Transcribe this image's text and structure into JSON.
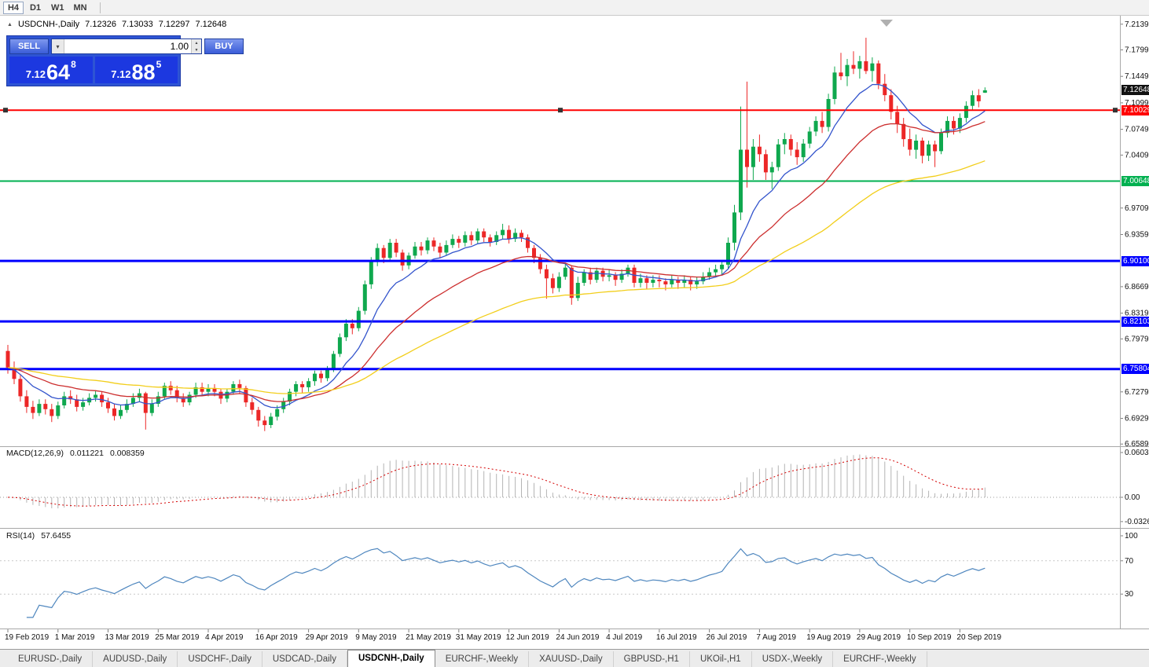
{
  "toolbar": {
    "timeframes": [
      "H4",
      "D1",
      "W1",
      "MN"
    ],
    "active": "H4"
  },
  "chart": {
    "title": {
      "symbol": "USDCNH-,Daily",
      "open": "7.12326",
      "high": "7.13033",
      "low": "7.12297",
      "close": "7.12648"
    }
  },
  "trade_panel": {
    "sell_label": "SELL",
    "buy_label": "BUY",
    "volume": "1.00",
    "sell_price": {
      "prefix": "7.12",
      "big": "64",
      "sup": "8"
    },
    "buy_price": {
      "prefix": "7.12",
      "big": "88",
      "sup": "5"
    }
  },
  "tabs": {
    "items": [
      {
        "label": "EURUSD-,Daily",
        "active": false
      },
      {
        "label": "AUDUSD-,Daily",
        "active": false
      },
      {
        "label": "USDCHF-,Daily",
        "active": false
      },
      {
        "label": "USDCAD-,Daily",
        "active": false
      },
      {
        "label": "USDCNH-,Daily",
        "active": true
      },
      {
        "label": "EURCHF-,Weekly",
        "active": false
      },
      {
        "label": "XAUUSD-,Daily",
        "active": false
      },
      {
        "label": "GBPUSD-,H1",
        "active": false
      },
      {
        "label": "UKOil-,H1",
        "active": false
      },
      {
        "label": "USDX-,Weekly",
        "active": false
      },
      {
        "label": "EURCHF-,Weekly",
        "active": false
      }
    ]
  },
  "chart_data": {
    "type": "candlestick",
    "symbol": "USDCNH-",
    "timeframe": "Daily",
    "title": "USDCNH-,Daily 7.12326 7.13033 7.12297 7.12648",
    "grid": false,
    "price_range": {
      "top": 7.223,
      "bottom": 6.656
    },
    "colors": {
      "up": "#0FA84E",
      "down": "#EC2727",
      "ma_fast": "#3354CC",
      "ma_mid": "#CC2E2E",
      "ma_slow": "#F2CE1B",
      "macd_hist": "#B4B4B4",
      "macd_signal": "#D40000",
      "rsi": "#4E86BE",
      "level_red": "#FF0000",
      "level_green": "#00B050",
      "level_blue": "#0000FF",
      "last_price_bg": "#111111"
    },
    "moving_averages": [
      {
        "period": 10,
        "color": "#3354CC"
      },
      {
        "period": 25,
        "color": "#CC2E2E"
      },
      {
        "period": 60,
        "color": "#F2CE1B"
      }
    ],
    "levels": [
      {
        "price": 7.10029,
        "label": "7.10029",
        "color": "#FF0000",
        "width": 2,
        "selected": true
      },
      {
        "price": 7.00648,
        "label": "7.00648",
        "color": "#00B050",
        "width": 2,
        "selected": false
      },
      {
        "price": 6.901,
        "label": "6.90100",
        "color": "#0000FF",
        "width": 3,
        "selected": false
      },
      {
        "price": 6.82103,
        "label": "6.82103",
        "color": "#0000FF",
        "width": 3,
        "selected": false
      },
      {
        "price": 6.75804,
        "label": "6.75804",
        "color": "#0000FF",
        "width": 3,
        "selected": false
      }
    ],
    "last_price": {
      "label": "7.12648",
      "value": 7.12648
    },
    "price_axis_labels": [
      "7.21390",
      "7.17990",
      "7.14490",
      "7.10990",
      "7.07490",
      "7.04090",
      "6.97090",
      "6.93590",
      "6.86690",
      "6.83190",
      "6.79790",
      "6.72790",
      "6.69290",
      "6.65890"
    ],
    "x_axis_dates": [
      {
        "label": "19 Feb 2019",
        "index": 0
      },
      {
        "label": "1 Mar 2019",
        "index": 8
      },
      {
        "label": "13 Mar 2019",
        "index": 16
      },
      {
        "label": "25 Mar 2019",
        "index": 24
      },
      {
        "label": "4 Apr 2019",
        "index": 32
      },
      {
        "label": "16 Apr 2019",
        "index": 40
      },
      {
        "label": "29 Apr 2019",
        "index": 48
      },
      {
        "label": "9 May 2019",
        "index": 56
      },
      {
        "label": "21 May 2019",
        "index": 64
      },
      {
        "label": "31 May 2019",
        "index": 72
      },
      {
        "label": "12 Jun 2019",
        "index": 80
      },
      {
        "label": "24 Jun 2019",
        "index": 88
      },
      {
        "label": "4 Jul 2019",
        "index": 96
      },
      {
        "label": "16 Jul 2019",
        "index": 104
      },
      {
        "label": "26 Jul 2019",
        "index": 112
      },
      {
        "label": "7 Aug 2019",
        "index": 120
      },
      {
        "label": "19 Aug 2019",
        "index": 128
      },
      {
        "label": "29 Aug 2019",
        "index": 136
      },
      {
        "label": "10 Sep 2019",
        "index": 144
      },
      {
        "label": "20 Sep 2019",
        "index": 152
      }
    ],
    "indicators": {
      "macd": {
        "label": "MACD(12,26,9)",
        "value_main": "0.011221",
        "value_signal": "0.008359",
        "axis_labels": [
          "0.060317",
          "0.00",
          "-0.032648"
        ]
      },
      "rsi": {
        "label": "RSI(14)",
        "value": "57.6455",
        "axis_labels": [
          "100",
          "70",
          "30"
        ]
      }
    },
    "ohlc": [
      [
        6.782,
        6.79,
        6.752,
        6.76
      ],
      [
        6.76,
        6.768,
        6.738,
        6.745
      ],
      [
        6.745,
        6.75,
        6.715,
        6.722
      ],
      [
        6.722,
        6.73,
        6.7,
        6.708
      ],
      [
        6.708,
        6.716,
        6.692,
        6.7
      ],
      [
        6.7,
        6.718,
        6.696,
        6.712
      ],
      [
        6.712,
        6.718,
        6.698,
        6.705
      ],
      [
        6.705,
        6.712,
        6.688,
        6.696
      ],
      [
        6.696,
        6.715,
        6.692,
        6.71
      ],
      [
        6.71,
        6.728,
        6.706,
        6.722
      ],
      [
        6.722,
        6.73,
        6.712,
        6.718
      ],
      [
        6.718,
        6.724,
        6.702,
        6.708
      ],
      [
        6.708,
        6.72,
        6.703,
        6.714
      ],
      [
        6.714,
        6.726,
        6.71,
        6.72
      ],
      [
        6.72,
        6.73,
        6.715,
        6.724
      ],
      [
        6.724,
        6.728,
        6.708,
        6.714
      ],
      [
        6.714,
        6.72,
        6.7,
        6.706
      ],
      [
        6.706,
        6.712,
        6.69,
        6.696
      ],
      [
        6.696,
        6.71,
        6.692,
        6.704
      ],
      [
        6.704,
        6.718,
        6.7,
        6.712
      ],
      [
        6.712,
        6.726,
        6.708,
        6.72
      ],
      [
        6.72,
        6.732,
        6.714,
        6.726
      ],
      [
        6.726,
        6.728,
        6.678,
        6.7
      ],
      [
        6.7,
        6.718,
        6.696,
        6.712
      ],
      [
        6.712,
        6.728,
        6.708,
        6.722
      ],
      [
        6.722,
        6.74,
        6.718,
        6.736
      ],
      [
        6.736,
        6.742,
        6.724,
        6.73
      ],
      [
        6.73,
        6.736,
        6.714,
        6.72
      ],
      [
        6.72,
        6.726,
        6.708,
        6.714
      ],
      [
        6.714,
        6.728,
        6.71,
        6.724
      ],
      [
        6.724,
        6.74,
        6.72,
        6.734
      ],
      [
        6.734,
        6.74,
        6.722,
        6.728
      ],
      [
        6.728,
        6.738,
        6.722,
        6.733
      ],
      [
        6.733,
        6.738,
        6.722,
        6.728
      ],
      [
        6.728,
        6.732,
        6.712,
        6.719
      ],
      [
        6.719,
        6.732,
        6.714,
        6.728
      ],
      [
        6.728,
        6.742,
        6.724,
        6.738
      ],
      [
        6.738,
        6.744,
        6.726,
        6.733
      ],
      [
        6.733,
        6.736,
        6.708,
        6.714
      ],
      [
        6.714,
        6.72,
        6.698,
        6.704
      ],
      [
        6.704,
        6.708,
        6.682,
        6.69
      ],
      [
        6.69,
        6.696,
        6.676,
        6.684
      ],
      [
        6.684,
        6.7,
        6.68,
        6.695
      ],
      [
        6.695,
        6.71,
        6.69,
        6.705
      ],
      [
        6.705,
        6.72,
        6.7,
        6.715
      ],
      [
        6.715,
        6.732,
        6.71,
        6.728
      ],
      [
        6.728,
        6.742,
        6.722,
        6.738
      ],
      [
        6.738,
        6.742,
        6.726,
        6.734
      ],
      [
        6.734,
        6.746,
        6.728,
        6.742
      ],
      [
        6.742,
        6.756,
        6.736,
        6.752
      ],
      [
        6.752,
        6.756,
        6.74,
        6.746
      ],
      [
        6.746,
        6.762,
        6.742,
        6.758
      ],
      [
        6.758,
        6.782,
        6.754,
        6.778
      ],
      [
        6.778,
        6.805,
        6.774,
        6.8
      ],
      [
        6.8,
        6.824,
        6.795,
        6.818
      ],
      [
        6.818,
        6.824,
        6.804,
        6.812
      ],
      [
        6.812,
        6.84,
        6.808,
        6.835
      ],
      [
        6.835,
        6.875,
        6.83,
        6.87
      ],
      [
        6.87,
        6.906,
        6.864,
        6.9
      ],
      [
        6.9,
        6.924,
        6.894,
        6.918
      ],
      [
        6.918,
        6.922,
        6.898,
        6.905
      ],
      [
        6.905,
        6.93,
        6.9,
        6.925
      ],
      [
        6.925,
        6.93,
        6.906,
        6.912
      ],
      [
        6.912,
        6.916,
        6.888,
        6.895
      ],
      [
        6.895,
        6.912,
        6.89,
        6.908
      ],
      [
        6.908,
        6.926,
        6.904,
        6.92
      ],
      [
        6.92,
        6.926,
        6.908,
        6.915
      ],
      [
        6.915,
        6.932,
        6.91,
        6.928
      ],
      [
        6.928,
        6.932,
        6.914,
        6.92
      ],
      [
        6.92,
        6.925,
        6.905,
        6.912
      ],
      [
        6.912,
        6.928,
        6.908,
        6.922
      ],
      [
        6.922,
        6.936,
        6.918,
        6.93
      ],
      [
        6.93,
        6.934,
        6.918,
        6.925
      ],
      [
        6.925,
        6.94,
        6.92,
        6.935
      ],
      [
        6.935,
        6.94,
        6.922,
        6.928
      ],
      [
        6.928,
        6.944,
        6.924,
        6.94
      ],
      [
        6.94,
        6.944,
        6.926,
        6.932
      ],
      [
        6.932,
        6.936,
        6.92,
        6.926
      ],
      [
        6.926,
        6.94,
        6.922,
        6.935
      ],
      [
        6.935,
        6.95,
        6.93,
        6.942
      ],
      [
        6.942,
        6.948,
        6.924,
        6.93
      ],
      [
        6.93,
        6.944,
        6.926,
        6.938
      ],
      [
        6.938,
        6.942,
        6.926,
        6.932
      ],
      [
        6.932,
        6.936,
        6.912,
        6.918
      ],
      [
        6.918,
        6.922,
        6.898,
        6.905
      ],
      [
        6.905,
        6.91,
        6.884,
        6.89
      ],
      [
        6.89,
        6.896,
        6.851,
        6.878
      ],
      [
        6.878,
        6.884,
        6.858,
        6.865
      ],
      [
        6.865,
        6.886,
        6.86,
        6.88
      ],
      [
        6.88,
        6.898,
        6.876,
        6.892
      ],
      [
        6.892,
        6.895,
        6.843,
        6.852
      ],
      [
        6.852,
        6.88,
        6.848,
        6.872
      ],
      [
        6.872,
        6.89,
        6.868,
        6.886
      ],
      [
        6.886,
        6.892,
        6.87,
        6.876
      ],
      [
        6.876,
        6.892,
        6.872,
        6.888
      ],
      [
        6.888,
        6.892,
        6.874,
        6.88
      ],
      [
        6.88,
        6.89,
        6.874,
        6.882
      ],
      [
        6.882,
        6.886,
        6.868,
        6.876
      ],
      [
        6.876,
        6.89,
        6.872,
        6.884
      ],
      [
        6.884,
        6.896,
        6.88,
        6.892
      ],
      [
        6.892,
        6.896,
        6.866,
        6.872
      ],
      [
        6.872,
        6.884,
        6.866,
        6.878
      ],
      [
        6.878,
        6.882,
        6.864,
        6.872
      ],
      [
        6.872,
        6.882,
        6.866,
        6.876
      ],
      [
        6.876,
        6.882,
        6.866,
        6.874
      ],
      [
        6.874,
        6.878,
        6.862,
        6.87
      ],
      [
        6.87,
        6.882,
        6.866,
        6.876
      ],
      [
        6.876,
        6.88,
        6.864,
        6.872
      ],
      [
        6.872,
        6.882,
        6.866,
        6.876
      ],
      [
        6.876,
        6.88,
        6.862,
        6.87
      ],
      [
        6.87,
        6.88,
        6.864,
        6.874
      ],
      [
        6.874,
        6.886,
        6.87,
        6.88
      ],
      [
        6.88,
        6.892,
        6.876,
        6.886
      ],
      [
        6.886,
        6.896,
        6.88,
        6.89
      ],
      [
        6.89,
        6.9,
        6.882,
        6.896
      ],
      [
        6.896,
        6.932,
        6.89,
        6.925
      ],
      [
        6.925,
        6.975,
        6.915,
        6.965
      ],
      [
        6.965,
        7.105,
        6.955,
        7.048
      ],
      [
        7.048,
        7.138,
        6.998,
        7.025
      ],
      [
        7.025,
        7.062,
        7.008,
        7.052
      ],
      [
        7.052,
        7.068,
        7.032,
        7.042
      ],
      [
        7.042,
        7.048,
        7.008,
        7.018
      ],
      [
        7.018,
        7.032,
        6.996,
        7.025
      ],
      [
        7.025,
        7.062,
        7.02,
        7.055
      ],
      [
        7.055,
        7.07,
        7.042,
        7.062
      ],
      [
        7.062,
        7.068,
        7.04,
        7.048
      ],
      [
        7.048,
        7.058,
        7.028,
        7.038
      ],
      [
        7.038,
        7.062,
        7.032,
        7.056
      ],
      [
        7.056,
        7.078,
        7.05,
        7.072
      ],
      [
        7.072,
        7.092,
        7.066,
        7.086
      ],
      [
        7.086,
        7.098,
        7.07,
        7.078
      ],
      [
        7.078,
        7.122,
        7.072,
        7.115
      ],
      [
        7.115,
        7.158,
        7.108,
        7.15
      ],
      [
        7.15,
        7.176,
        7.14,
        7.145
      ],
      [
        7.145,
        7.168,
        7.132,
        7.16
      ],
      [
        7.16,
        7.178,
        7.148,
        7.155
      ],
      [
        7.155,
        7.172,
        7.142,
        7.165
      ],
      [
        7.165,
        7.196,
        7.148,
        7.152
      ],
      [
        7.152,
        7.17,
        7.138,
        7.162
      ],
      [
        7.162,
        7.166,
        7.128,
        7.135
      ],
      [
        7.135,
        7.148,
        7.112,
        7.12
      ],
      [
        7.12,
        7.128,
        7.088,
        7.098
      ],
      [
        7.098,
        7.106,
        7.07,
        7.082
      ],
      [
        7.082,
        7.09,
        7.052,
        7.062
      ],
      [
        7.062,
        7.076,
        7.04,
        7.048
      ],
      [
        7.048,
        7.068,
        7.036,
        7.06
      ],
      [
        7.06,
        7.064,
        7.03,
        7.04
      ],
      [
        7.04,
        7.06,
        7.033,
        7.055
      ],
      [
        7.055,
        7.06,
        7.025,
        7.046
      ],
      [
        7.046,
        7.076,
        7.042,
        7.07
      ],
      [
        7.07,
        7.092,
        7.064,
        7.086
      ],
      [
        7.086,
        7.092,
        7.068,
        7.076
      ],
      [
        7.076,
        7.096,
        7.07,
        7.09
      ],
      [
        7.09,
        7.112,
        7.084,
        7.106
      ],
      [
        7.106,
        7.126,
        7.1,
        7.12
      ],
      [
        7.12,
        7.128,
        7.104,
        7.112
      ],
      [
        7.12326,
        7.13033,
        7.12297,
        7.12648
      ]
    ]
  }
}
